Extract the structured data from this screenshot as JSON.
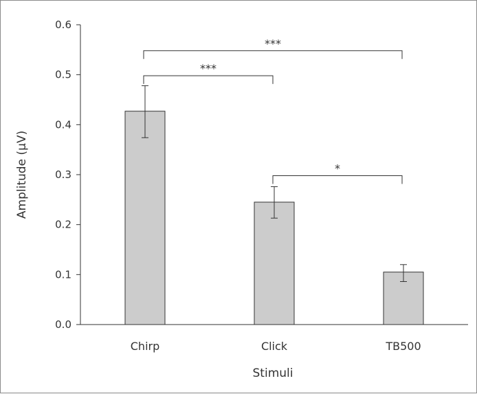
{
  "chart_data": {
    "type": "bar",
    "title": "",
    "xlabel": "Stimuli",
    "ylabel": "Amplitude (μV)",
    "ylim": [
      0,
      0.6
    ],
    "yticks": [
      "0.0",
      "0.1",
      "0.2",
      "0.3",
      "0.4",
      "0.5",
      "0.6"
    ],
    "categories": [
      "Chirp",
      "Click",
      "TB500"
    ],
    "values": [
      0.427,
      0.245,
      0.105
    ],
    "error_low": [
      0.374,
      0.213,
      0.086
    ],
    "error_high": [
      0.478,
      0.276,
      0.12
    ],
    "bar_color": "#cccccc",
    "grid": false,
    "significance": [
      {
        "from": 0,
        "to": 2,
        "label": "***",
        "level": 0.548
      },
      {
        "from": 0,
        "to": 1,
        "label": "***",
        "level": 0.498
      },
      {
        "from": 1,
        "to": 2,
        "label": "*",
        "level": 0.298
      }
    ]
  }
}
